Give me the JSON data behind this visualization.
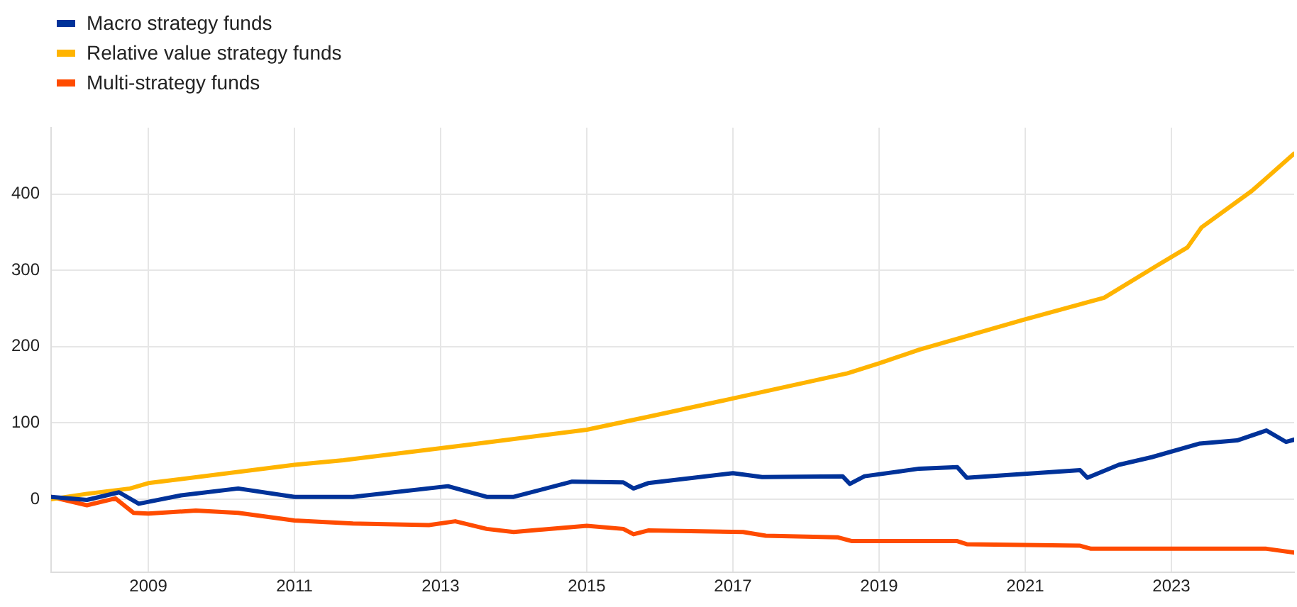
{
  "chart_data": {
    "type": "line",
    "xlim": [
      2007.67,
      2024.68
    ],
    "xticks": [
      2009,
      2011,
      2013,
      2015,
      2017,
      2019,
      2021,
      2023
    ],
    "ylim": [
      -96,
      487
    ],
    "yticks": [
      0,
      100,
      200,
      300,
      400
    ],
    "grid": true,
    "legend": "top left",
    "marker": "none",
    "line_style": "solid",
    "series": [
      {
        "name": "Macro strategy funds",
        "color": "#003299",
        "x": [
          2007.67,
          2008.16,
          2008.6,
          2008.87,
          2009.45,
          2010.23,
          2011,
          2011.8,
          2013.1,
          2013.63,
          2014.0,
          2014.8,
          2015.5,
          2015.64,
          2015.84,
          2017,
          2017.4,
          2018.5,
          2018.6,
          2018.8,
          2019.55,
          2020.07,
          2020.2,
          2021.75,
          2021.85,
          2022.28,
          2022.73,
          2023.39,
          2023.9,
          2024.3,
          2024.57,
          2024.68
        ],
        "values": [
          3,
          -1,
          9,
          -6,
          5,
          14,
          3,
          3,
          17,
          3,
          3,
          23,
          22,
          14,
          21,
          34,
          29,
          30,
          20,
          30,
          40,
          42,
          28,
          38,
          28,
          45,
          55,
          73,
          77,
          90,
          75,
          78
        ]
      },
      {
        "name": "Relative value strategy funds",
        "color": "#ffb400",
        "x": [
          2007.67,
          2008.16,
          2008.75,
          2009,
          2011,
          2011.67,
          2013.36,
          2015,
          2015.84,
          2017,
          2018.57,
          2019.0,
          2019.55,
          2020.97,
          2022.08,
          2022.8,
          2023.22,
          2023.41,
          2024.1,
          2024.68
        ],
        "values": [
          0,
          7,
          14,
          21,
          45,
          51,
          71,
          91,
          108,
          132,
          165,
          178,
          196,
          235,
          264,
          306,
          330,
          356,
          404,
          453
        ]
      },
      {
        "name": "Multi-strategy funds",
        "color": "#ff4b00",
        "x": [
          2007.67,
          2008.16,
          2008.55,
          2008.8,
          2009,
          2009.65,
          2010.23,
          2011,
          2011.8,
          2012.84,
          2013.2,
          2013.63,
          2014.0,
          2015,
          2015.5,
          2015.64,
          2015.84,
          2017.14,
          2017.45,
          2018.43,
          2018.63,
          2020.07,
          2020.2,
          2021.75,
          2021.9,
          2024.3,
          2024.68
        ],
        "values": [
          3,
          -8,
          1,
          -18,
          -19,
          -15,
          -18,
          -28,
          -32,
          -34,
          -29,
          -39,
          -43,
          -35,
          -39,
          -46,
          -41,
          -43,
          -48,
          -50,
          -55,
          -55,
          -59,
          -61,
          -65,
          -65,
          -70
        ]
      }
    ]
  }
}
